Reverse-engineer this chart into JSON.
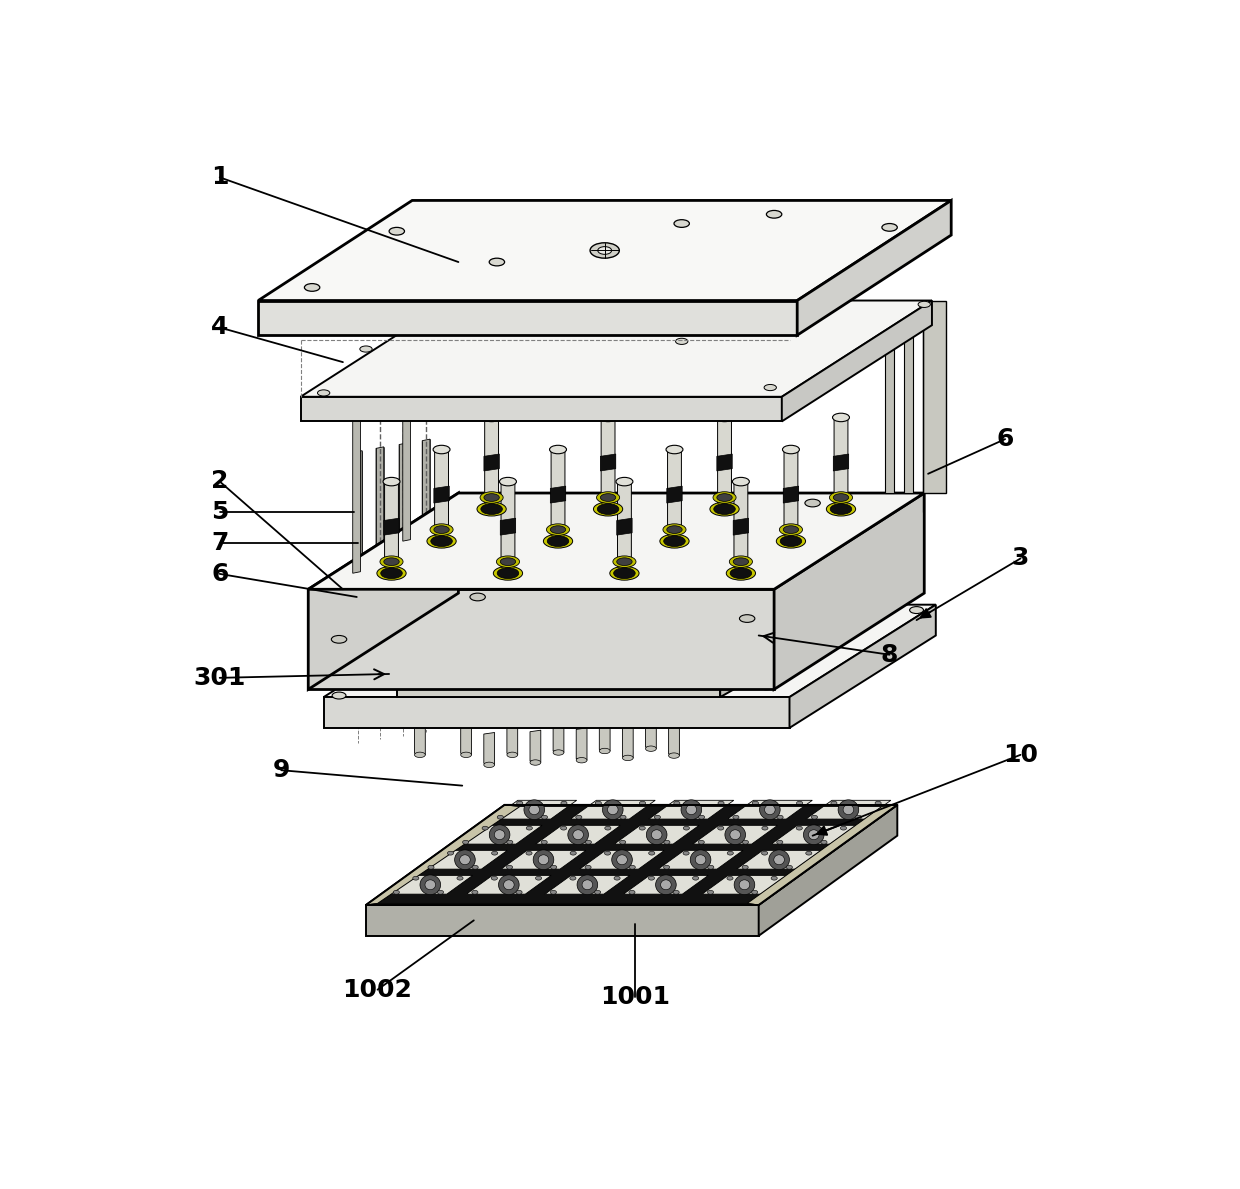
{
  "background_color": "#ffffff",
  "line_color": "#000000",
  "label_fontsize": 18,
  "figsize": [
    12.4,
    11.89
  ],
  "dpi": 100,
  "lw_thick": 2.0,
  "lw_med": 1.4,
  "lw_thin": 0.9,
  "face_top": "#f5f5f3",
  "face_front": "#d8d8d4",
  "face_right": "#c8c8c4",
  "face_left": "#d0d0cc",
  "face_dark": "#b0b0ac"
}
